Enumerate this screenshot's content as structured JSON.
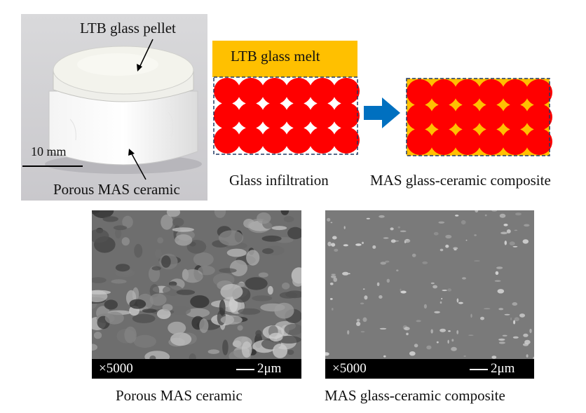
{
  "photo": {
    "pellet_label": "LTB glass pellet",
    "ceramic_label": "Porous MAS ceramic",
    "scale_label": "10 mm"
  },
  "diagram": {
    "melt_label": "LTB glass melt",
    "process_label": "Glass infiltration",
    "result_label": "MAS glass-ceramic composite",
    "colors": {
      "particle": "#ff0000",
      "glass": "#ffc000",
      "arrow": "#0070c0",
      "frame": "#203864"
    }
  },
  "sem": {
    "left": {
      "magnification": "×5000",
      "scale": "2μm",
      "caption": "Porous MAS ceramic"
    },
    "right": {
      "magnification": "×5000",
      "scale": "2μm",
      "caption": "MAS glass-ceramic composite"
    }
  }
}
